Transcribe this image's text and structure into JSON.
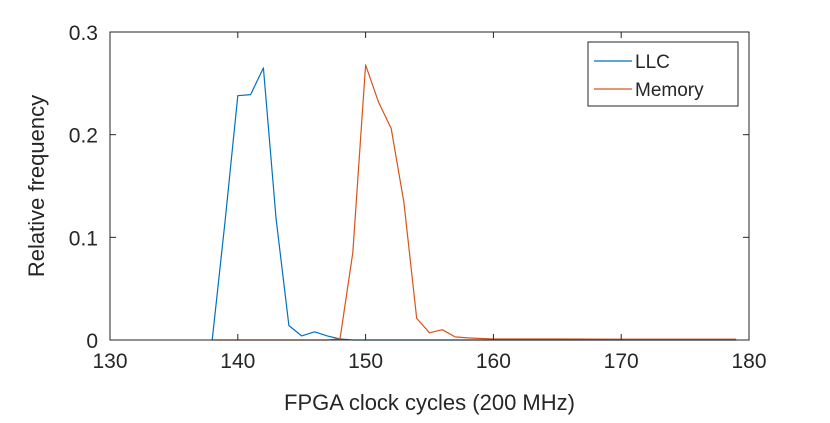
{
  "chart_data": {
    "type": "line",
    "xlabel": "FPGA clock cycles (200 MHz)",
    "ylabel": "Relative frequency",
    "xlim": [
      130,
      180
    ],
    "ylim": [
      0,
      0.3
    ],
    "xticks": [
      "130",
      "140",
      "150",
      "160",
      "170",
      "180"
    ],
    "yticks": [
      "0",
      "0.1",
      "0.2",
      "0.3"
    ],
    "grid": false,
    "legend_position": "top-right",
    "series": [
      {
        "name": "LLC",
        "color": "#0072BD",
        "x": [
          138,
          139,
          140,
          141,
          142,
          143,
          144,
          145,
          146,
          147,
          148,
          149,
          150,
          155,
          160,
          170,
          179
        ],
        "y": [
          0,
          0.115,
          0.238,
          0.239,
          0.265,
          0.118,
          0.014,
          0.004,
          0.008,
          0.004,
          0.001,
          0,
          0,
          0,
          0,
          0,
          0
        ]
      },
      {
        "name": "Memory",
        "color": "#D95319",
        "x": [
          138,
          140,
          145,
          147,
          148,
          149,
          150,
          151,
          152,
          153,
          154,
          155,
          156,
          157,
          158,
          159,
          160,
          161,
          162,
          165,
          170,
          175,
          178,
          179
        ],
        "y": [
          0,
          0,
          0,
          0,
          0.001,
          0.085,
          0.268,
          0.232,
          0.206,
          0.134,
          0.021,
          0.007,
          0.01,
          0.003,
          0.002,
          0.0015,
          0.001,
          0.001,
          0.001,
          0.001,
          0.0008,
          0.0008,
          0.0008,
          0.0008
        ]
      }
    ]
  }
}
